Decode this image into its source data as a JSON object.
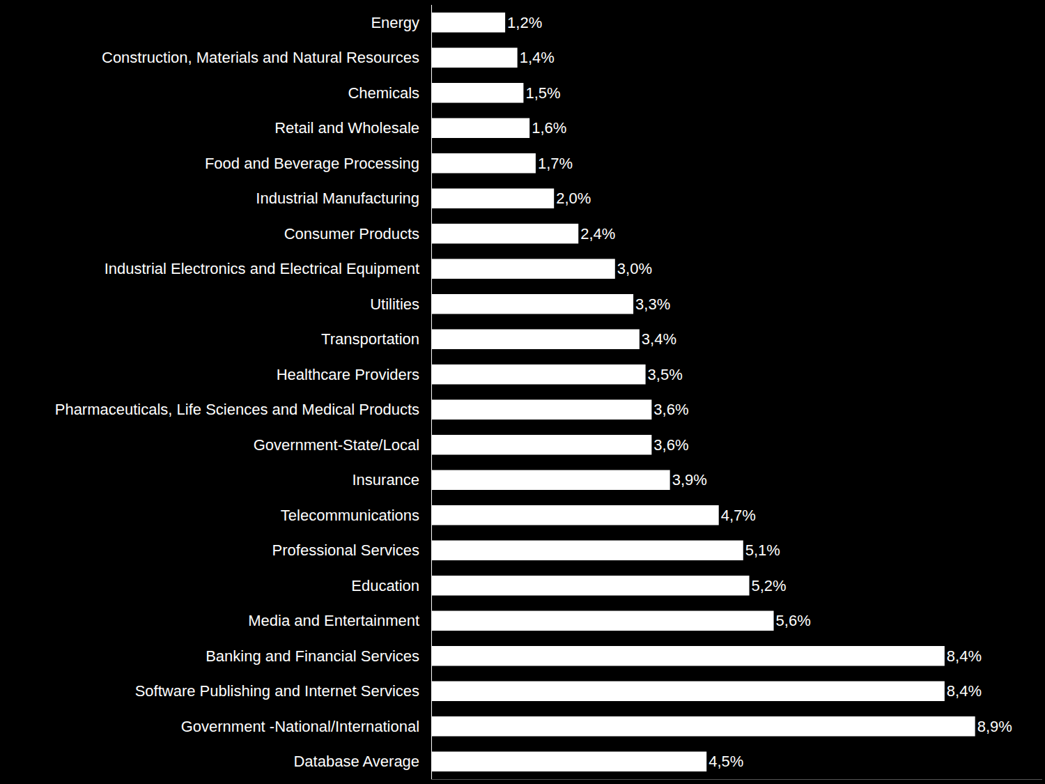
{
  "chart_data": {
    "type": "bar",
    "orientation": "horizontal",
    "categories": [
      "Energy",
      "Construction, Materials and Natural Resources",
      "Chemicals",
      "Retail and Wholesale",
      "Food and Beverage Processing",
      "Industrial Manufacturing",
      "Consumer Products",
      "Industrial Electronics and Electrical Equipment",
      "Utilities",
      "Transportation",
      "Healthcare Providers",
      "Pharmaceuticals, Life Sciences and Medical Products",
      "Government-State/Local",
      "Insurance",
      "Telecommunications",
      "Professional Services",
      "Education",
      "Media and Entertainment",
      "Banking and Financial Services",
      "Software Publishing and Internet Services",
      "Government -National/International",
      "Database Average"
    ],
    "values": [
      1.2,
      1.4,
      1.5,
      1.6,
      1.7,
      2.0,
      2.4,
      3.0,
      3.3,
      3.4,
      3.5,
      3.6,
      3.6,
      3.9,
      4.7,
      5.1,
      5.2,
      5.6,
      8.4,
      8.4,
      8.9,
      4.5
    ],
    "value_labels": [
      "1,2%",
      "1,4%",
      "1,5%",
      "1,6%",
      "1,7%",
      "2,0%",
      "2,4%",
      "3,0%",
      "3,3%",
      "3,4%",
      "3,5%",
      "3,6%",
      "3,6%",
      "3,9%",
      "4,7%",
      "5,1%",
      "5,2%",
      "5,6%",
      "8,4%",
      "8,4%",
      "8,9%",
      "4,5%"
    ],
    "color": "#ffffff",
    "xlim": [
      0,
      10
    ],
    "data_labels": true,
    "tick_labels": "y",
    "grid": false
  }
}
